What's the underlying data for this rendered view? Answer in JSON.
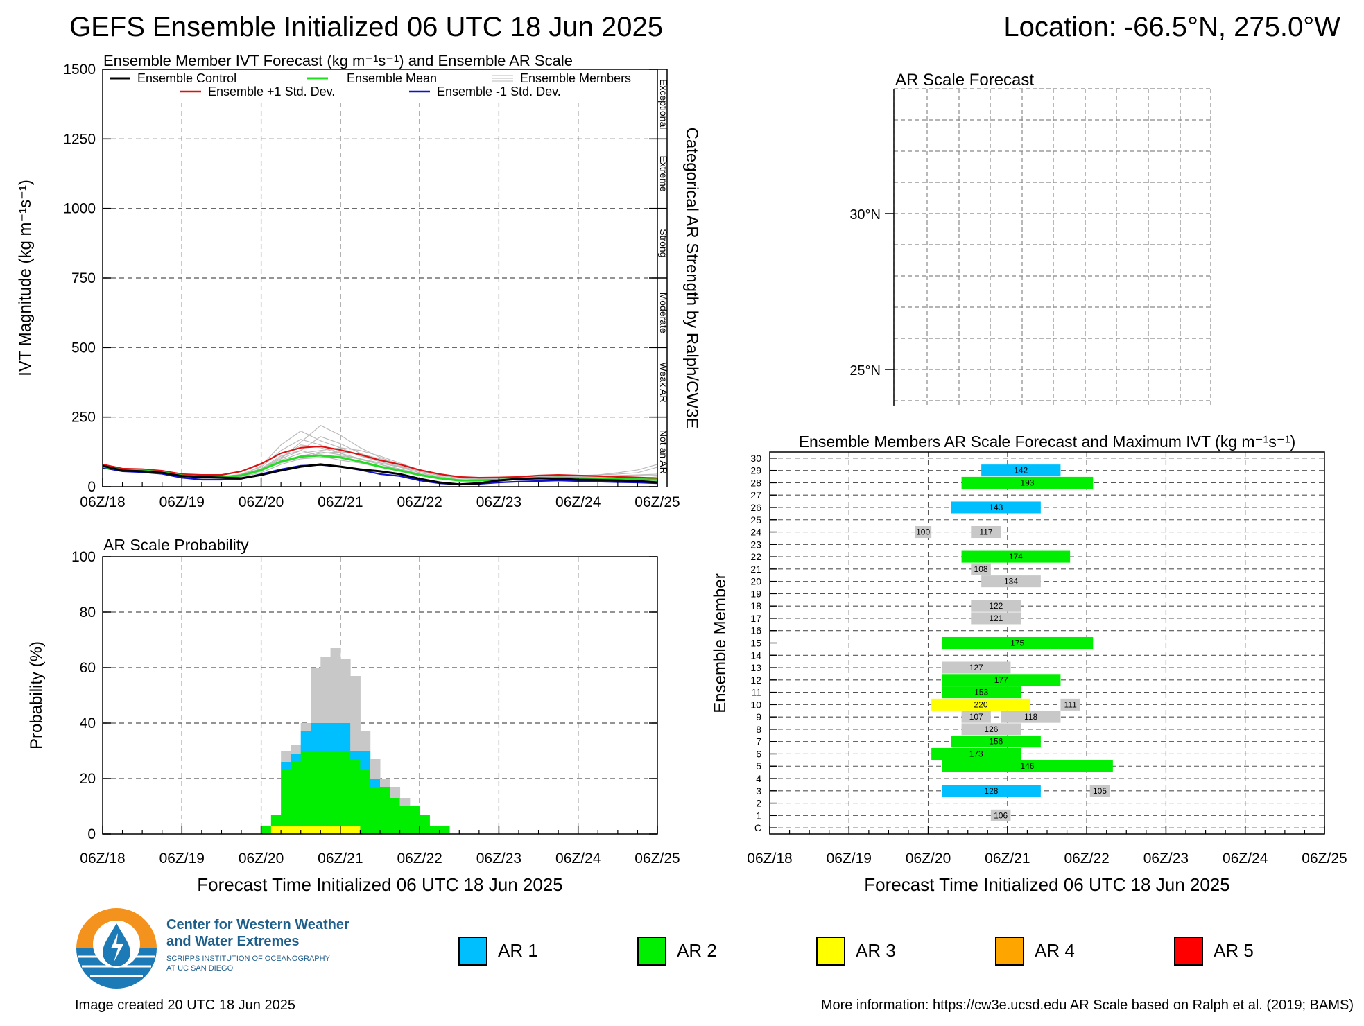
{
  "header": {
    "title": "GEFS Ensemble Initialized 06 UTC 18 Jun 2025",
    "location": "Location: -66.5°N, 275.0°W"
  },
  "x_tick_labels": [
    "06Z/18",
    "06Z/19",
    "06Z/20",
    "06Z/21",
    "06Z/22",
    "06Z/23",
    "06Z/24",
    "06Z/25"
  ],
  "ivt_panel": {
    "title": "Ensemble Member IVT Forecast (kg m⁻¹s⁻¹) and Ensemble AR Scale",
    "ylabel": "IVT Magnitude (kg m⁻¹s⁻¹)",
    "right_label": "Categorical AR Strength by Ralph/CW3E",
    "categories": [
      "Exceptional",
      "Extreme",
      "Strong",
      "Moderate",
      "Weak AR",
      "Not an AR"
    ],
    "legend": {
      "control": "Ensemble Control",
      "mean": "Ensemble Mean",
      "members": "Ensemble Members",
      "plus": "Ensemble +1 Std. Dev.",
      "minus": "Ensemble -1 Std. Dev."
    }
  },
  "prob_panel": {
    "title": "AR Scale Probability",
    "ylabel": "Probability (%)",
    "xlabel": "Forecast Time Initialized 06 UTC 18 Jun 2025"
  },
  "map_panel": {
    "title": "AR Scale Forecast",
    "lat_labels": [
      "30°N",
      "25°N"
    ]
  },
  "member_panel": {
    "title": "Ensemble Members AR Scale Forecast and Maximum IVT (kg m⁻¹s⁻¹)",
    "ylabel": "Ensemble Member",
    "xlabel": "Forecast Time Initialized 06 UTC 18 Jun 2025",
    "member_labels": [
      "C",
      "1",
      "2",
      "3",
      "4",
      "5",
      "6",
      "7",
      "8",
      "9",
      "10",
      "11",
      "12",
      "13",
      "14",
      "15",
      "16",
      "17",
      "18",
      "19",
      "20",
      "21",
      "22",
      "23",
      "24",
      "25",
      "26",
      "27",
      "28",
      "29",
      "30"
    ]
  },
  "footer": {
    "created": "Image created 20 UTC 18 Jun 2025",
    "info": "More information: https://cw3e.ucsd.edu AR Scale based on Ralph et al. (2019; BAMS)",
    "logo_line1": "Center for Western Weather",
    "logo_line2": "and Water Extremes",
    "logo_line3": "SCRIPPS INSTITUTION OF OCEANOGRAPHY",
    "logo_line4": "AT UC SAN DIEGO"
  },
  "scale_legend": [
    {
      "label": "AR 1",
      "color": "#00bfff"
    },
    {
      "label": "AR 2",
      "color": "#00ee00"
    },
    {
      "label": "AR 3",
      "color": "#ffff00"
    },
    {
      "label": "AR 4",
      "color": "#ffa500"
    },
    {
      "label": "AR 5",
      "color": "#ff0000"
    }
  ],
  "colors": {
    "control": "#000000",
    "mean": "#22dd22",
    "plus": "#dd1111",
    "minus": "#1111cc",
    "members": "#bbbbbb",
    "not_ar": "#c8c8c8",
    "ar1": "#00bfff",
    "ar2": "#00ee00",
    "ar3": "#ffff00"
  },
  "chart_data": [
    {
      "type": "line",
      "title": "Ensemble Member IVT Forecast (kg m⁻¹s⁻¹) and Ensemble AR Scale",
      "xlabel": "",
      "ylabel": "IVT Magnitude (kg m⁻¹s⁻¹)",
      "x_range_days": [
        0,
        7
      ],
      "ylim": [
        0,
        1500
      ],
      "yticks": [
        0,
        250,
        500,
        750,
        1000,
        1250,
        1500
      ],
      "x": [
        0,
        0.25,
        0.5,
        0.75,
        1,
        1.25,
        1.5,
        1.75,
        2,
        2.25,
        2.5,
        2.75,
        3,
        3.25,
        3.5,
        3.75,
        4,
        4.25,
        4.5,
        4.75,
        5,
        5.25,
        5.5,
        5.75,
        6,
        6.25,
        6.5,
        6.75,
        7
      ],
      "series": [
        {
          "name": "Ensemble Control",
          "values": [
            75,
            58,
            55,
            50,
            38,
            35,
            32,
            30,
            42,
            58,
            72,
            80,
            72,
            62,
            55,
            45,
            28,
            15,
            8,
            12,
            22,
            28,
            30,
            28,
            25,
            24,
            22,
            20,
            15
          ]
        },
        {
          "name": "Ensemble Mean",
          "values": [
            72,
            60,
            58,
            52,
            40,
            35,
            35,
            40,
            60,
            90,
            108,
            112,
            105,
            90,
            72,
            58,
            42,
            30,
            22,
            22,
            24,
            27,
            30,
            32,
            30,
            28,
            27,
            26,
            25
          ]
        },
        {
          "name": "Ensemble +1 Std. Dev.",
          "values": [
            80,
            65,
            63,
            57,
            45,
            42,
            42,
            55,
            82,
            120,
            140,
            145,
            132,
            115,
            95,
            80,
            60,
            45,
            35,
            32,
            33,
            35,
            40,
            42,
            40,
            38,
            35,
            33,
            30
          ]
        },
        {
          "name": "Ensemble -1 Std. Dev.",
          "values": [
            68,
            55,
            52,
            46,
            32,
            25,
            25,
            28,
            45,
            62,
            75,
            78,
            72,
            60,
            45,
            38,
            22,
            12,
            8,
            10,
            15,
            18,
            20,
            22,
            20,
            18,
            16,
            15,
            12
          ]
        }
      ],
      "member_series": [
        [
          70,
          58,
          52,
          48,
          30,
          28,
          30,
          45,
          70,
          130,
          170,
          150,
          120,
          100,
          85,
          70,
          50,
          35,
          25,
          20,
          22,
          25,
          30,
          32,
          28,
          26,
          24,
          22,
          20
        ],
        [
          78,
          62,
          60,
          55,
          42,
          38,
          36,
          40,
          75,
          150,
          200,
          165,
          140,
          110,
          90,
          72,
          55,
          40,
          30,
          26,
          28,
          30,
          35,
          38,
          36,
          34,
          30,
          28,
          26
        ],
        [
          74,
          60,
          56,
          50,
          38,
          34,
          34,
          42,
          65,
          110,
          130,
          180,
          155,
          120,
          95,
          75,
          55,
          40,
          32,
          28,
          30,
          32,
          34,
          36,
          34,
          32,
          30,
          28,
          26
        ],
        [
          72,
          58,
          55,
          50,
          36,
          32,
          33,
          38,
          55,
          95,
          120,
          130,
          140,
          130,
          110,
          85,
          60,
          45,
          35,
          30,
          30,
          33,
          36,
          38,
          40,
          42,
          45,
          50,
          70
        ],
        [
          76,
          62,
          58,
          52,
          40,
          36,
          36,
          44,
          60,
          85,
          105,
          120,
          125,
          118,
          100,
          80,
          60,
          44,
          34,
          30,
          30,
          32,
          35,
          36,
          38,
          42,
          50,
          60,
          80
        ],
        [
          70,
          57,
          54,
          48,
          35,
          30,
          31,
          36,
          50,
          80,
          100,
          105,
          110,
          100,
          85,
          70,
          50,
          36,
          26,
          22,
          24,
          26,
          28,
          30,
          28,
          26,
          24,
          22,
          18
        ],
        [
          73,
          60,
          57,
          51,
          39,
          35,
          34,
          40,
          60,
          100,
          130,
          110,
          95,
          85,
          70,
          55,
          40,
          30,
          22,
          22,
          24,
          26,
          30,
          34,
          36,
          38,
          40,
          42,
          45
        ],
        [
          75,
          61,
          58,
          52,
          40,
          36,
          36,
          41,
          62,
          105,
          150,
          140,
          120,
          100,
          80,
          60,
          45,
          32,
          24,
          22,
          24,
          27,
          30,
          32,
          30,
          30,
          28,
          30,
          35
        ],
        [
          71,
          58,
          55,
          49,
          37,
          33,
          33,
          38,
          58,
          90,
          110,
          125,
          115,
          98,
          80,
          64,
          46,
          33,
          25,
          22,
          24,
          26,
          29,
          31,
          33,
          35,
          37,
          39,
          41
        ],
        [
          74,
          60,
          57,
          51,
          39,
          35,
          35,
          40,
          60,
          100,
          160,
          220,
          185,
          140,
          105,
          80,
          58,
          42,
          32,
          28,
          28,
          30,
          32,
          34,
          33,
          31,
          29,
          27,
          25
        ]
      ]
    },
    {
      "type": "bar",
      "title": "AR Scale Probability",
      "xlabel": "Forecast Time Initialized 06 UTC 18 Jun 2025",
      "ylabel": "Probability (%)",
      "ylim": [
        0,
        100
      ],
      "yticks": [
        0,
        20,
        40,
        60,
        80,
        100
      ],
      "bar_width_days": 0.125,
      "x_start_days": [
        2.0,
        2.125,
        2.25,
        2.375,
        2.5,
        2.625,
        2.75,
        2.875,
        3.0,
        3.125,
        3.25,
        3.375,
        3.5,
        3.625,
        3.75,
        3.875,
        4.0,
        4.125,
        4.25
      ],
      "series": [
        {
          "name": "AR 3",
          "values": [
            0,
            3,
            3,
            3,
            3,
            3,
            3,
            3,
            3,
            3,
            0,
            0,
            0,
            0,
            0,
            0,
            0,
            0,
            0
          ]
        },
        {
          "name": "AR 2",
          "values": [
            3,
            4,
            20,
            23,
            27,
            27,
            27,
            27,
            27,
            24,
            23,
            17,
            17,
            13,
            10,
            10,
            7,
            3,
            3
          ]
        },
        {
          "name": "AR 1",
          "values": [
            0,
            0,
            3,
            3,
            7,
            10,
            10,
            10,
            10,
            3,
            7,
            3,
            0,
            0,
            0,
            0,
            0,
            0,
            0
          ]
        },
        {
          "name": "Not an AR",
          "values": [
            0,
            0,
            4,
            3,
            3,
            20,
            24,
            27,
            23,
            27,
            7,
            7,
            3,
            4,
            3,
            0,
            0,
            0,
            0
          ]
        }
      ]
    },
    {
      "type": "bar",
      "title": "Ensemble Members AR Scale Forecast and Maximum IVT (kg m⁻¹s⁻¹)",
      "xlabel": "Forecast Time Initialized 06 UTC 18 Jun 2025",
      "ylabel": "Ensemble Member",
      "ylim": [
        0,
        30
      ],
      "segments": [
        {
          "member": 29,
          "start": 2.67,
          "end": 3.67,
          "ar": 1,
          "ivt": "142"
        },
        {
          "member": 28,
          "start": 2.42,
          "end": 4.08,
          "ar": 2,
          "ivt": "193"
        },
        {
          "member": 26,
          "start": 2.29,
          "end": 3.42,
          "ar": 1,
          "ivt": "143"
        },
        {
          "member": 24,
          "start": 1.83,
          "end": 2.04,
          "ar": 0,
          "ivt": "100"
        },
        {
          "member": 24,
          "start": 2.54,
          "end": 2.92,
          "ar": 0,
          "ivt": "117"
        },
        {
          "member": 22,
          "start": 2.42,
          "end": 3.79,
          "ar": 2,
          "ivt": "174"
        },
        {
          "member": 21,
          "start": 2.54,
          "end": 2.79,
          "ar": 0,
          "ivt": "108"
        },
        {
          "member": 20,
          "start": 2.67,
          "end": 3.42,
          "ar": 0,
          "ivt": "134"
        },
        {
          "member": 18,
          "start": 2.54,
          "end": 3.17,
          "ar": 0,
          "ivt": "122"
        },
        {
          "member": 17,
          "start": 2.54,
          "end": 3.17,
          "ar": 0,
          "ivt": "121"
        },
        {
          "member": 15,
          "start": 2.17,
          "end": 4.08,
          "ar": 2,
          "ivt": "175"
        },
        {
          "member": 13,
          "start": 2.17,
          "end": 3.04,
          "ar": 0,
          "ivt": "127"
        },
        {
          "member": 12,
          "start": 2.17,
          "end": 3.67,
          "ar": 2,
          "ivt": "177"
        },
        {
          "member": 11,
          "start": 2.17,
          "end": 3.17,
          "ar": 2,
          "ivt": "153"
        },
        {
          "member": 10,
          "start": 2.04,
          "end": 3.29,
          "ar": 3,
          "ivt": "220"
        },
        {
          "member": 10,
          "start": 3.67,
          "end": 3.92,
          "ar": 0,
          "ivt": "111"
        },
        {
          "member": 9,
          "start": 2.42,
          "end": 2.79,
          "ar": 0,
          "ivt": "107"
        },
        {
          "member": 9,
          "start": 2.92,
          "end": 3.67,
          "ar": 0,
          "ivt": "118"
        },
        {
          "member": 8,
          "start": 2.42,
          "end": 3.17,
          "ar": 0,
          "ivt": "126"
        },
        {
          "member": 7,
          "start": 2.29,
          "end": 3.42,
          "ar": 2,
          "ivt": "156"
        },
        {
          "member": 6,
          "start": 2.04,
          "end": 3.17,
          "ar": 2,
          "ivt": "173"
        },
        {
          "member": 5,
          "start": 2.17,
          "end": 4.33,
          "ar": 2,
          "ivt": "146"
        },
        {
          "member": 3,
          "start": 2.17,
          "end": 3.42,
          "ar": 1,
          "ivt": "128"
        },
        {
          "member": 3,
          "start": 4.04,
          "end": 4.29,
          "ar": 0,
          "ivt": "105"
        },
        {
          "member": 1,
          "start": 2.79,
          "end": 3.04,
          "ar": 0,
          "ivt": "106"
        }
      ]
    }
  ]
}
